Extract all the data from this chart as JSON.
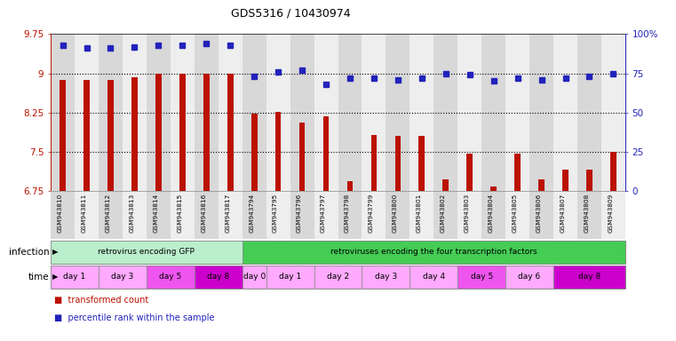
{
  "title": "GDS5316 / 10430974",
  "samples": [
    "GSM943810",
    "GSM943811",
    "GSM943812",
    "GSM943813",
    "GSM943814",
    "GSM943815",
    "GSM943816",
    "GSM943817",
    "GSM943794",
    "GSM943795",
    "GSM943796",
    "GSM943797",
    "GSM943798",
    "GSM943799",
    "GSM943800",
    "GSM943801",
    "GSM943802",
    "GSM943803",
    "GSM943804",
    "GSM943805",
    "GSM943806",
    "GSM943807",
    "GSM943808",
    "GSM943809"
  ],
  "bar_values": [
    8.87,
    8.87,
    8.87,
    8.92,
    9.0,
    9.0,
    9.0,
    9.0,
    8.22,
    8.27,
    8.05,
    8.18,
    6.93,
    7.82,
    7.8,
    7.8,
    6.97,
    7.47,
    6.83,
    7.47,
    6.97,
    7.15,
    7.15,
    7.5
  ],
  "dot_values": [
    93,
    91,
    91,
    92,
    93,
    93,
    94,
    93,
    73,
    76,
    77,
    68,
    72,
    72,
    71,
    72,
    75,
    74,
    70,
    72,
    71,
    72,
    73,
    75
  ],
  "ylim_left": [
    6.75,
    9.75
  ],
  "ylim_right": [
    0,
    100
  ],
  "yticks_left": [
    6.75,
    7.5,
    8.25,
    9.0,
    9.75
  ],
  "yticks_right": [
    0,
    25,
    50,
    75,
    100
  ],
  "yticklabels_left": [
    "6.75",
    "7.5",
    "8.25",
    "9",
    "9.75"
  ],
  "yticklabels_right": [
    "0",
    "25",
    "50",
    "75",
    "100%"
  ],
  "bar_color": "#bb1100",
  "dot_color": "#2222bb",
  "col_colors_even": "#d8d8d8",
  "col_colors_odd": "#eeeeee",
  "infection_groups": [
    {
      "label": "retrovirus encoding GFP",
      "start": 0,
      "end": 8,
      "color": "#bbeecc"
    },
    {
      "label": "retroviruses encoding the four transcription factors",
      "start": 8,
      "end": 24,
      "color": "#44cc55"
    }
  ],
  "time_groups": [
    {
      "label": "day 1",
      "start": 0,
      "end": 2,
      "color": "#ffaaff"
    },
    {
      "label": "day 3",
      "start": 2,
      "end": 4,
      "color": "#ffaaff"
    },
    {
      "label": "day 5",
      "start": 4,
      "end": 6,
      "color": "#ee55ee"
    },
    {
      "label": "day 8",
      "start": 6,
      "end": 8,
      "color": "#cc00cc"
    },
    {
      "label": "day 0",
      "start": 8,
      "end": 9,
      "color": "#ffaaff"
    },
    {
      "label": "day 1",
      "start": 9,
      "end": 11,
      "color": "#ffaaff"
    },
    {
      "label": "day 2",
      "start": 11,
      "end": 13,
      "color": "#ffaaff"
    },
    {
      "label": "day 3",
      "start": 13,
      "end": 15,
      "color": "#ffaaff"
    },
    {
      "label": "day 4",
      "start": 15,
      "end": 17,
      "color": "#ffaaff"
    },
    {
      "label": "day 5",
      "start": 17,
      "end": 19,
      "color": "#ee55ee"
    },
    {
      "label": "day 6",
      "start": 19,
      "end": 21,
      "color": "#ffaaff"
    },
    {
      "label": "day 8",
      "start": 21,
      "end": 24,
      "color": "#cc00cc"
    }
  ],
  "legend_items": [
    {
      "label": "transformed count",
      "color": "#bb1100"
    },
    {
      "label": "percentile rank within the sample",
      "color": "#2222bb"
    }
  ],
  "infection_label": "infection",
  "time_label": "time"
}
